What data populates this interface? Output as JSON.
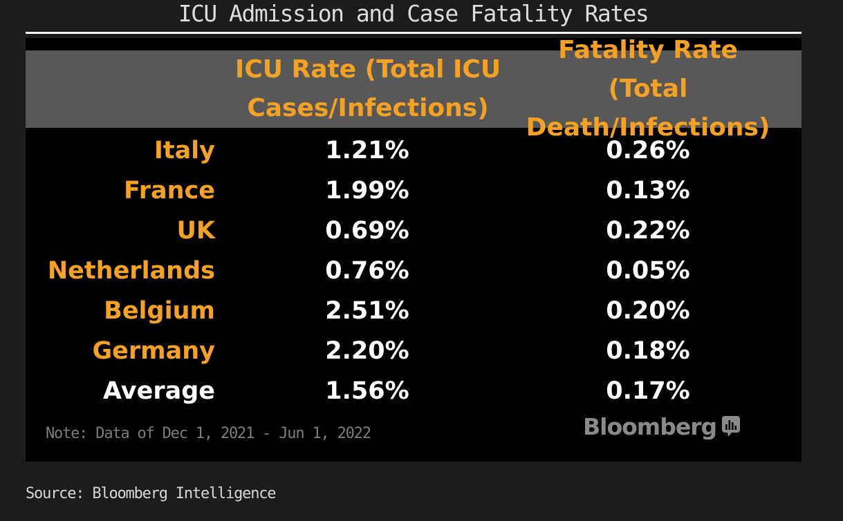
{
  "title": "ICU Admission and Case Fatality Rates",
  "table": {
    "columns": [
      "ICU Rate (Total ICU Cases/Infections)",
      "Fatality Rate (Total Death/Infections)"
    ],
    "rows": [
      {
        "label": "Italy",
        "icu": "1.21%",
        "fatality": "0.26%"
      },
      {
        "label": "France",
        "icu": "1.99%",
        "fatality": "0.13%"
      },
      {
        "label": "UK",
        "icu": "0.69%",
        "fatality": "0.22%"
      },
      {
        "label": "Netherlands",
        "icu": "0.76%",
        "fatality": "0.05%"
      },
      {
        "label": "Belgium",
        "icu": "2.51%",
        "fatality": "0.20%"
      },
      {
        "label": "Germany",
        "icu": "2.20%",
        "fatality": "0.18%"
      },
      {
        "label": "Average",
        "icu": "1.56%",
        "fatality": "0.17%"
      }
    ]
  },
  "note": "Note: Data of Dec 1, 2021 - Jun 1, 2022",
  "logo": {
    "text": "Bloomberg",
    "icon": "bloomberg-chart-icon"
  },
  "source": "Source: Bloomberg Intelligence",
  "colors": {
    "accent": "#f5a123",
    "header_band": "#585858",
    "panel": "#000000",
    "background": "#1c1c1c"
  },
  "chart_data": {
    "type": "table",
    "title": "ICU Admission and Case Fatality Rates",
    "columns": [
      "ICU Rate (Total ICU Cases/Infections)",
      "Fatality Rate (Total Death/Infections)"
    ],
    "categories": [
      "Italy",
      "France",
      "UK",
      "Netherlands",
      "Belgium",
      "Germany",
      "Average"
    ],
    "series": [
      {
        "name": "ICU Rate (Total ICU Cases/Infections)",
        "values": [
          1.21,
          1.99,
          0.69,
          0.76,
          2.51,
          2.2,
          1.56
        ]
      },
      {
        "name": "Fatality Rate (Total Death/Infections)",
        "values": [
          0.26,
          0.13,
          0.22,
          0.05,
          0.2,
          0.18,
          0.17
        ]
      }
    ],
    "unit": "%"
  }
}
